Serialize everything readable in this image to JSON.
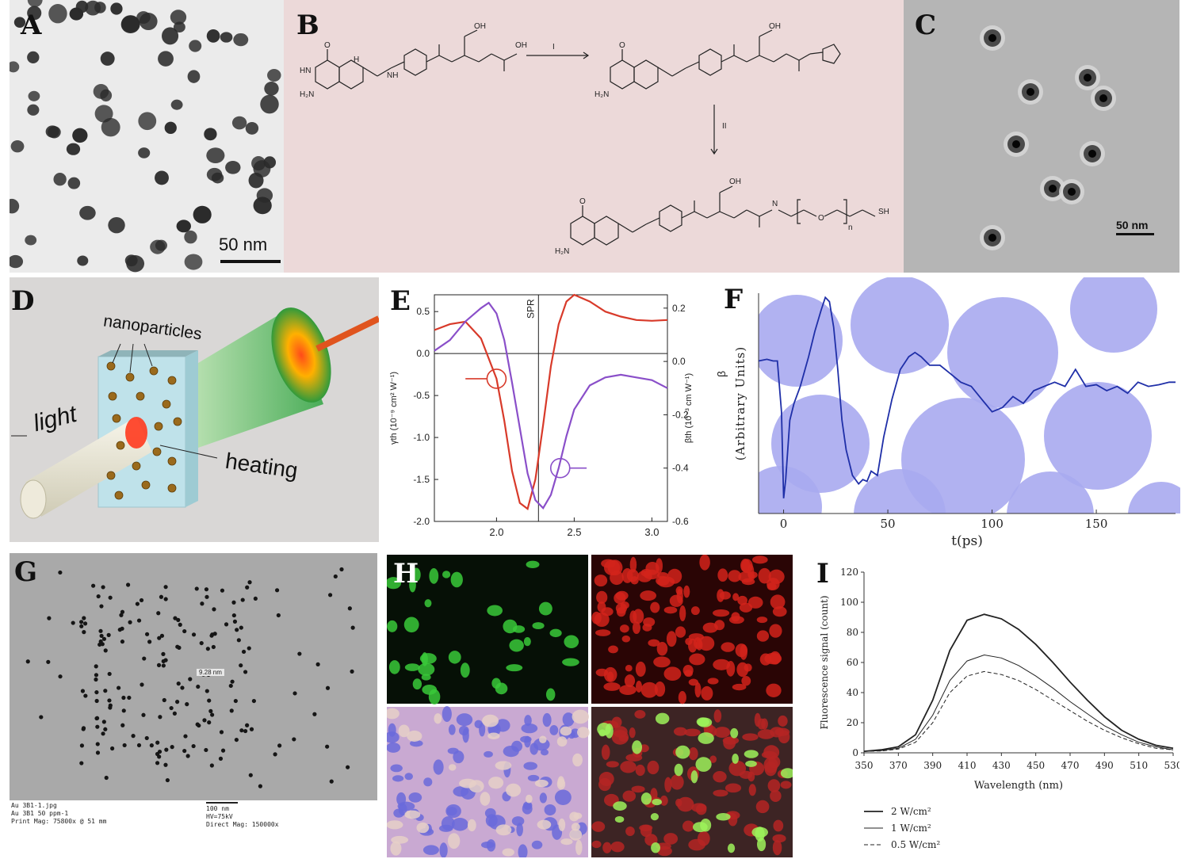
{
  "panels": {
    "A": {
      "label": "A",
      "scalebar": "50 nm"
    },
    "B": {
      "label": "B",
      "step1": "I",
      "step2": "II",
      "atoms": {
        "O": "O",
        "OH": "OH",
        "HN": "HN",
        "N": "N",
        "H": "H",
        "H2N": "H₂N",
        "NH": "NH",
        "SH": "SH",
        "n": "n"
      }
    },
    "C": {
      "label": "C",
      "scalebar": "50 nm"
    },
    "D": {
      "label": "D",
      "text_nanoparticles": "nanoparticles",
      "text_light": "light",
      "text_heating": "heating"
    },
    "E": {
      "label": "E",
      "spr": "SPR",
      "ylabel_left": "γth (10⁻⁹ cm² W⁻¹)",
      "ylabel_right": "βth (10⁻³ cm W⁻¹)"
    },
    "F": {
      "label": "F",
      "xlabel": "t(ps)",
      "ylabel": "(Arbitrary Units)",
      "ylabel_sym": "β"
    },
    "G": {
      "label": "G",
      "measure": "9.28 nm",
      "caption_left": [
        "Au 3B1-1.jpg",
        "Au 3B1 50 ppm-1",
        "Print Mag: 75800x @ 51 mm"
      ],
      "caption_right": [
        "100 nm",
        "HV=75kV",
        "Direct Mag: 150000x"
      ]
    },
    "H": {
      "label": "H"
    },
    "I": {
      "label": "I"
    }
  },
  "chart_data": [
    {
      "id": "E",
      "type": "line",
      "xlim": [
        1.6,
        3.1
      ],
      "xticks": [
        2.0,
        2.5,
        3.0
      ],
      "ylim_left": [
        -2.0,
        0.7
      ],
      "yticks_left": [
        0.5,
        0.0,
        -0.5,
        -1.0,
        -1.5,
        -2.0
      ],
      "ylim_right": [
        -0.6,
        0.25
      ],
      "yticks_right": [
        0.2,
        0.0,
        -0.2,
        -0.4,
        -0.6
      ],
      "spr_x": 2.27,
      "series": [
        {
          "axis": "left",
          "color": "#d83a2a",
          "x": [
            1.6,
            1.7,
            1.8,
            1.9,
            2.0,
            2.05,
            2.1,
            2.15,
            2.2,
            2.25,
            2.3,
            2.35,
            2.4,
            2.45,
            2.5,
            2.6,
            2.7,
            2.8,
            2.9,
            3.0,
            3.1
          ],
          "y": [
            0.28,
            0.35,
            0.38,
            0.18,
            -0.3,
            -0.8,
            -1.4,
            -1.78,
            -1.85,
            -1.5,
            -0.85,
            -0.15,
            0.35,
            0.62,
            0.7,
            0.62,
            0.5,
            0.44,
            0.4,
            0.39,
            0.4
          ]
        },
        {
          "axis": "right",
          "color": "#8a4fc9",
          "x": [
            1.6,
            1.7,
            1.8,
            1.9,
            1.95,
            2.0,
            2.05,
            2.1,
            2.15,
            2.2,
            2.25,
            2.3,
            2.35,
            2.4,
            2.45,
            2.5,
            2.6,
            2.7,
            2.8,
            2.9,
            3.0,
            3.1
          ],
          "y": [
            0.04,
            0.08,
            0.15,
            0.2,
            0.22,
            0.18,
            0.08,
            -0.08,
            -0.25,
            -0.42,
            -0.52,
            -0.55,
            -0.5,
            -0.4,
            -0.28,
            -0.18,
            -0.09,
            -0.06,
            -0.05,
            -0.06,
            -0.07,
            -0.1
          ]
        }
      ]
    },
    {
      "id": "F",
      "type": "line",
      "xlim": [
        -12,
        188
      ],
      "xticks": [
        0,
        50,
        100,
        150
      ],
      "ylim": [
        -1.8,
        0.8
      ],
      "series": [
        {
          "color": "#1f2fa8",
          "x": [
            -12,
            -8,
            -5,
            -3,
            -1,
            0,
            1,
            3,
            5,
            8,
            12,
            15,
            18,
            20,
            22,
            24,
            26,
            28,
            30,
            33,
            36,
            38,
            40,
            42,
            45,
            48,
            52,
            56,
            60,
            63,
            66,
            70,
            75,
            80,
            85,
            90,
            95,
            100,
            105,
            110,
            115,
            120,
            125,
            130,
            135,
            140,
            145,
            150,
            155,
            160,
            165,
            170,
            175,
            180,
            185,
            188
          ],
          "y": [
            0.0,
            0.02,
            0.0,
            0.0,
            -0.6,
            -1.62,
            -1.4,
            -0.7,
            -0.5,
            -0.3,
            0.05,
            0.35,
            0.6,
            0.75,
            0.7,
            0.4,
            -0.1,
            -0.7,
            -1.05,
            -1.35,
            -1.45,
            -1.4,
            -1.42,
            -1.3,
            -1.35,
            -0.9,
            -0.45,
            -0.1,
            0.05,
            0.1,
            0.05,
            -0.05,
            -0.05,
            -0.15,
            -0.25,
            -0.3,
            -0.45,
            -0.6,
            -0.55,
            -0.42,
            -0.5,
            -0.35,
            -0.3,
            -0.25,
            -0.3,
            -0.1,
            -0.3,
            -0.28,
            -0.35,
            -0.3,
            -0.38,
            -0.25,
            -0.3,
            -0.28,
            -0.25,
            -0.25
          ]
        }
      ]
    },
    {
      "id": "I",
      "type": "line",
      "title": "",
      "xlabel": "Wavelength (nm)",
      "ylabel": "Fluorescence signal (count)",
      "xlim": [
        350,
        530
      ],
      "xticks": [
        350,
        370,
        390,
        410,
        430,
        450,
        470,
        490,
        510,
        530
      ],
      "ylim": [
        0,
        120
      ],
      "yticks": [
        0,
        20,
        40,
        60,
        80,
        100,
        120
      ],
      "series": [
        {
          "name": "2 W/cm²",
          "style": "solid-thick",
          "x": [
            350,
            360,
            370,
            380,
            390,
            400,
            410,
            420,
            430,
            440,
            450,
            460,
            470,
            480,
            490,
            500,
            510,
            520,
            530
          ],
          "y": [
            1,
            2,
            4,
            12,
            35,
            68,
            88,
            92,
            89,
            82,
            72,
            60,
            47,
            35,
            24,
            15,
            9,
            5,
            3
          ]
        },
        {
          "name": "1 W/cm²",
          "style": "solid-thin",
          "x": [
            350,
            360,
            370,
            380,
            390,
            400,
            410,
            420,
            430,
            440,
            450,
            460,
            470,
            480,
            490,
            500,
            510,
            520,
            530
          ],
          "y": [
            1,
            1.5,
            3,
            9,
            25,
            48,
            61,
            65,
            63,
            58,
            51,
            43,
            34,
            26,
            18,
            12,
            7,
            4,
            2
          ]
        },
        {
          "name": "0.5 W/cm²",
          "style": "dashed",
          "x": [
            350,
            360,
            370,
            380,
            390,
            400,
            410,
            420,
            430,
            440,
            450,
            460,
            470,
            480,
            490,
            500,
            510,
            520,
            530
          ],
          "y": [
            1,
            1.2,
            2.5,
            7,
            20,
            40,
            51,
            54,
            52,
            48,
            42,
            35,
            28,
            21,
            15,
            10,
            6,
            3,
            2
          ]
        }
      ]
    }
  ]
}
